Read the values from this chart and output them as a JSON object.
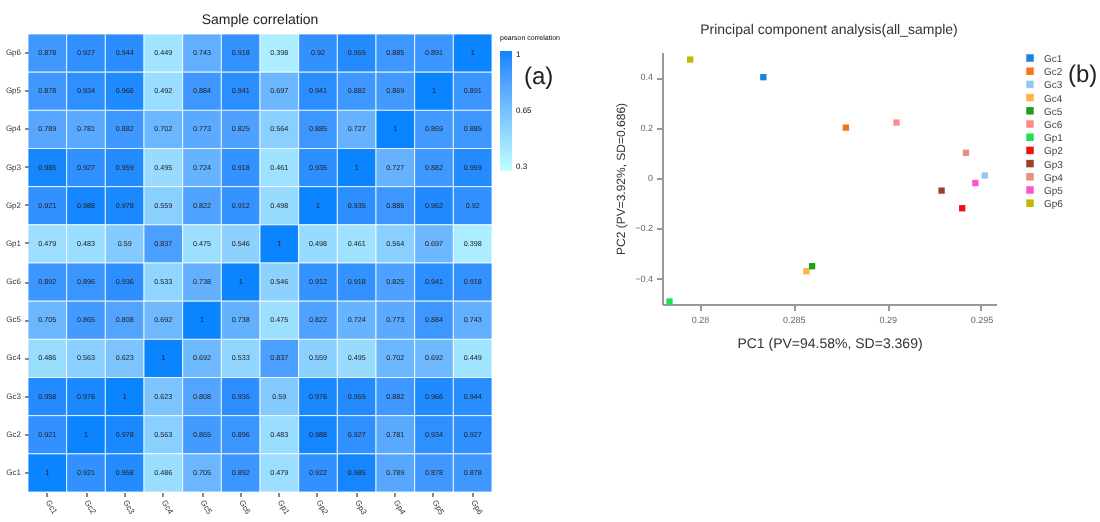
{
  "chart_data": [
    {
      "type": "heatmap",
      "title": "Sample correlation",
      "clabel": "pearson correlation",
      "clim": [
        0.3,
        1
      ],
      "cticks": [
        0.3,
        0.65,
        1
      ],
      "data_labels": true,
      "annotations": [
        "(a)"
      ],
      "categories": [
        "Gc1",
        "Gc2",
        "Gc3",
        "Gc4",
        "Gc5",
        "Gc6",
        "Gp1",
        "Gp2",
        "Gp3",
        "Gp4",
        "Gp5",
        "Gp6"
      ],
      "y_categories": [
        "Gp6",
        "Gp5",
        "Gp4",
        "Gp3",
        "Gp2",
        "Gp1",
        "Gc6",
        "Gc5",
        "Gc4",
        "Gc3",
        "Gc2",
        "Gc1"
      ],
      "cells": [
        [
          0.878,
          0.927,
          0.944,
          0.449,
          0.743,
          0.918,
          0.398,
          0.92,
          0.959,
          0.885,
          0.891,
          1
        ],
        [
          0.878,
          0.934,
          0.966,
          0.492,
          0.884,
          0.941,
          0.697,
          0.941,
          0.882,
          0.869,
          1,
          0.891
        ],
        [
          0.789,
          0.781,
          0.882,
          0.702,
          0.773,
          0.825,
          0.564,
          0.885,
          0.727,
          1,
          0.869,
          0.885
        ],
        [
          0.985,
          0.927,
          0.959,
          0.495,
          0.724,
          0.918,
          0.461,
          0.935,
          1,
          0.727,
          0.882,
          0.959
        ],
        [
          0.921,
          0.988,
          0.978,
          0.559,
          0.822,
          0.912,
          0.498,
          1,
          0.935,
          0.885,
          0.962,
          0.92
        ],
        [
          0.479,
          0.483,
          0.59,
          0.837,
          0.475,
          0.546,
          1,
          0.498,
          0.461,
          0.564,
          0.697,
          0.398
        ],
        [
          0.892,
          0.896,
          0.936,
          0.533,
          0.738,
          1,
          0.546,
          0.912,
          0.918,
          0.825,
          0.941,
          0.918
        ],
        [
          0.705,
          0.865,
          0.808,
          0.692,
          1,
          0.738,
          0.475,
          0.822,
          0.724,
          0.773,
          0.884,
          0.743
        ],
        [
          0.486,
          0.563,
          0.623,
          1,
          0.692,
          0.533,
          0.837,
          0.559,
          0.495,
          0.702,
          0.692,
          0.449
        ],
        [
          0.958,
          0.978,
          1,
          0.623,
          0.808,
          0.936,
          0.59,
          0.978,
          0.959,
          0.882,
          0.966,
          0.944
        ],
        [
          0.921,
          1,
          0.978,
          0.563,
          0.865,
          0.896,
          0.483,
          0.988,
          0.927,
          0.781,
          0.934,
          0.927
        ],
        [
          1,
          0.921,
          0.958,
          0.486,
          0.705,
          0.892,
          0.479,
          0.922,
          0.985,
          0.789,
          0.878,
          0.878
        ]
      ]
    },
    {
      "type": "scatter",
      "title": "Principal component analysis(all_sample)",
      "xlabel": "PC1 (PV=94.58%, SD=3.369)",
      "ylabel": "PC2 (PV=3.92%, SD=0.686)",
      "xlim": [
        0.278,
        0.2958
      ],
      "xticks": [
        0.28,
        0.285,
        0.29,
        0.295
      ],
      "ylim": [
        -0.5,
        0.5
      ],
      "yticks": [
        -0.4,
        -0.2,
        0,
        0.2,
        0.4
      ],
      "marker": "square",
      "legend": "right",
      "annotations": [
        "(b)"
      ],
      "series": [
        {
          "name": "Gc1",
          "color": "#1a7fe0",
          "x": [
            0.2834
          ],
          "values": [
            0.4
          ]
        },
        {
          "name": "Gc2",
          "color": "#f5761a",
          "x": [
            0.2878
          ],
          "values": [
            0.2
          ]
        },
        {
          "name": "Gc3",
          "color": "#99c6f0",
          "x": [
            0.2952
          ],
          "values": [
            0.01
          ]
        },
        {
          "name": "Gc4",
          "color": "#ffb347",
          "x": [
            0.2857
          ],
          "values": [
            -0.37
          ]
        },
        {
          "name": "Gc5",
          "color": "#1aa31a",
          "x": [
            0.286
          ],
          "values": [
            -0.35
          ]
        },
        {
          "name": "Gc6",
          "color": "#ff8c8c",
          "x": [
            0.2905
          ],
          "values": [
            0.22
          ]
        },
        {
          "name": "Gp1",
          "color": "#22dd55",
          "x": [
            0.2784
          ],
          "values": [
            -0.49
          ]
        },
        {
          "name": "Gp2",
          "color": "#ee1111",
          "x": [
            0.294
          ],
          "values": [
            -0.12
          ]
        },
        {
          "name": "Gp3",
          "color": "#a0402a",
          "x": [
            0.2929
          ],
          "values": [
            -0.05
          ]
        },
        {
          "name": "Gp4",
          "color": "#e89080",
          "x": [
            0.2942
          ],
          "values": [
            0.1
          ]
        },
        {
          "name": "Gp5",
          "color": "#ff55cc",
          "x": [
            0.2947
          ],
          "values": [
            -0.02
          ]
        },
        {
          "name": "Gp6",
          "color": "#c0b800",
          "x": [
            0.2795
          ],
          "values": [
            0.47
          ]
        }
      ]
    }
  ]
}
